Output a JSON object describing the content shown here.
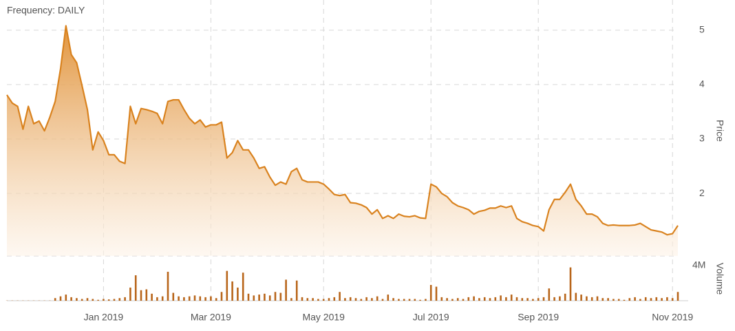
{
  "header": {
    "frequency": "Frequency: DAILY"
  },
  "chart_data": {
    "type": "area",
    "y_label": "Price",
    "y2_label": "Volume",
    "categories": [
      null,
      null,
      null,
      null,
      null,
      null,
      null,
      null,
      null,
      null,
      null,
      null,
      null,
      null,
      null,
      null,
      null,
      null,
      "Jan 2019",
      null,
      null,
      null,
      null,
      null,
      null,
      null,
      null,
      null,
      null,
      null,
      null,
      null,
      null,
      null,
      null,
      null,
      null,
      null,
      "Mar 2019",
      null,
      null,
      null,
      null,
      null,
      null,
      null,
      null,
      null,
      null,
      null,
      null,
      null,
      null,
      null,
      null,
      null,
      null,
      null,
      null,
      "May 2019",
      null,
      null,
      null,
      null,
      null,
      null,
      null,
      null,
      null,
      null,
      null,
      null,
      null,
      null,
      null,
      null,
      null,
      null,
      null,
      "Jul 2019",
      null,
      null,
      null,
      null,
      null,
      null,
      null,
      null,
      null,
      null,
      null,
      null,
      null,
      null,
      null,
      null,
      null,
      null,
      null,
      "Sep 2019",
      null,
      null,
      null,
      null,
      null,
      null,
      null,
      null,
      null,
      null,
      null,
      null,
      null,
      null,
      null,
      null,
      null,
      null,
      null,
      null,
      null,
      null,
      null,
      null,
      "Nov 2019",
      null
    ],
    "series": [
      {
        "color": "#d9821e",
        "values": [
          3.81,
          3.66,
          3.6,
          3.18,
          3.6,
          3.28,
          3.33,
          3.15,
          3.4,
          3.69,
          4.29,
          5.08,
          4.55,
          4.4,
          3.98,
          3.54,
          2.8,
          3.13,
          2.97,
          2.71,
          2.71,
          2.59,
          2.55,
          3.6,
          3.28,
          3.56,
          3.54,
          3.51,
          3.47,
          3.28,
          3.69,
          3.72,
          3.72,
          3.54,
          3.38,
          3.28,
          3.35,
          3.22,
          3.26,
          3.26,
          3.31,
          2.65,
          2.75,
          2.97,
          2.8,
          2.8,
          2.65,
          2.46,
          2.49,
          2.3,
          2.15,
          2.21,
          2.17,
          2.4,
          2.46,
          2.25,
          2.21,
          2.21,
          2.21,
          2.17,
          2.08,
          1.98,
          1.96,
          1.98,
          1.83,
          1.82,
          1.79,
          1.74,
          1.62,
          1.7,
          1.54,
          1.59,
          1.54,
          1.62,
          1.58,
          1.57,
          1.59,
          1.55,
          1.54,
          2.17,
          2.12,
          2.0,
          1.94,
          1.83,
          1.77,
          1.74,
          1.7,
          1.62,
          1.67,
          1.69,
          1.73,
          1.73,
          1.77,
          1.74,
          1.77,
          1.54,
          1.48,
          1.45,
          1.41,
          1.39,
          1.31,
          1.7,
          1.89,
          1.89,
          2.02,
          2.17,
          1.89,
          1.77,
          1.62,
          1.62,
          1.57,
          1.45,
          1.41,
          1.42,
          1.41,
          1.41,
          1.41,
          1.42,
          1.45,
          1.39,
          1.33,
          1.31,
          1.29,
          1.24,
          1.26,
          1.41
        ]
      },
      {
        "type": "bar",
        "axis": "y2",
        "color": "#b8651a",
        "values": [
          20000,
          20000,
          20000,
          20000,
          20000,
          20000,
          20000,
          20000,
          20000,
          300000,
          500000,
          700000,
          400000,
          300000,
          200000,
          300000,
          200000,
          100000,
          200000,
          150000,
          200000,
          300000,
          400000,
          1500000,
          2900000,
          1200000,
          1300000,
          800000,
          400000,
          500000,
          3300000,
          900000,
          500000,
          400000,
          500000,
          600000,
          500000,
          400000,
          500000,
          300000,
          1000000,
          3400000,
          2200000,
          1500000,
          3200000,
          800000,
          600000,
          700000,
          800000,
          600000,
          1000000,
          900000,
          2400000,
          300000,
          2300000,
          400000,
          300000,
          300000,
          200000,
          200000,
          300000,
          400000,
          1000000,
          300000,
          400000,
          300000,
          200000,
          400000,
          300000,
          500000,
          200000,
          700000,
          300000,
          200000,
          200000,
          200000,
          200000,
          100000,
          200000,
          1800000,
          1600000,
          400000,
          300000,
          200000,
          300000,
          200000,
          400000,
          500000,
          300000,
          400000,
          300000,
          400000,
          600000,
          400000,
          700000,
          400000,
          300000,
          300000,
          200000,
          300000,
          400000,
          1400000,
          400000,
          500000,
          800000,
          3800000,
          900000,
          700000,
          500000,
          400000,
          500000,
          300000,
          300000,
          200000,
          200000,
          100000,
          300000,
          400000,
          200000,
          400000,
          300000,
          400000,
          300000,
          400000,
          300000,
          1000000
        ]
      }
    ],
    "ylim": [
      0.85,
      5.2
    ],
    "yticks": [
      2,
      3,
      4,
      5
    ],
    "y2lim": [
      0,
      5100000
    ],
    "y2ticks": [
      {
        "value": 4000000,
        "label": "4M"
      }
    ],
    "grid": true
  }
}
